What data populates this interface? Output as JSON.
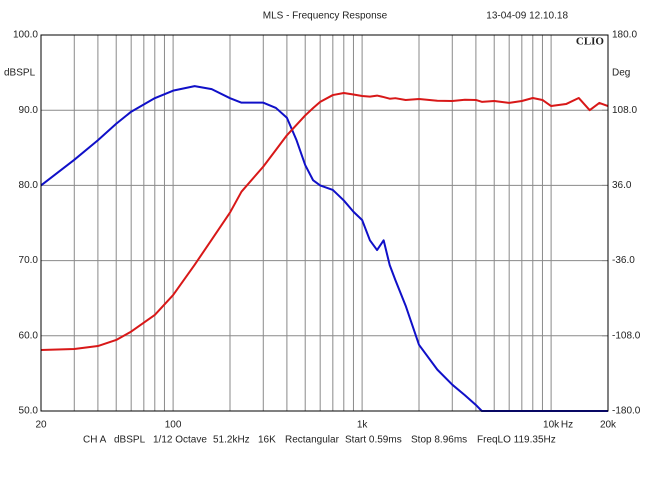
{
  "chart_data": {
    "type": "line",
    "title": "MLS - Frequency Response",
    "timestamp": "13-04-09 12.10.18",
    "brand": "CLIO",
    "ylabel": "dBSPL",
    "y2label": "Deg",
    "x_unit": "Hz",
    "footer": [
      "CH A",
      "dBSPL",
      "1/12 Octave",
      "51.2kHz",
      "16K",
      "Rectangular",
      "Start 0.59ms",
      "Stop 8.96ms",
      "FreqLO 119.35Hz"
    ],
    "xscale": "log",
    "grid": true,
    "xlim": [
      20,
      20000
    ],
    "xticks": [
      20,
      100,
      {
        "value": 1000,
        "label": "1k"
      },
      {
        "value": 10000,
        "label": "10k"
      },
      {
        "value": 20000,
        "label": "20k"
      }
    ],
    "xminor": [
      30,
      40,
      50,
      60,
      70,
      80,
      90,
      200,
      300,
      400,
      500,
      600,
      700,
      800,
      900,
      2000,
      3000,
      4000,
      5000,
      6000,
      7000,
      8000,
      9000
    ],
    "ylim": [
      50,
      100
    ],
    "yticks": [
      {
        "value": 50,
        "label": "50.0"
      },
      {
        "value": 60,
        "label": "60.0"
      },
      {
        "value": 70,
        "label": "70.0"
      },
      {
        "value": 80,
        "label": "80.0"
      },
      {
        "value": 90,
        "label": "90.0"
      },
      {
        "value": 100,
        "label": "100.0"
      }
    ],
    "y2lim": [
      -180,
      180
    ],
    "y2ticks": [
      {
        "value": -180,
        "label": "-180.0"
      },
      {
        "value": -108,
        "label": "-108.0"
      },
      {
        "value": -36,
        "label": "-36.0"
      },
      {
        "value": 36,
        "label": "36.0"
      },
      {
        "value": 108,
        "label": "108.0"
      },
      {
        "value": 180,
        "label": "180.0"
      }
    ],
    "x": [
      20,
      30,
      40,
      50,
      60,
      80,
      100,
      130,
      160,
      200,
      230,
      300,
      350,
      400,
      450,
      500,
      550,
      600,
      700,
      800,
      900,
      1000,
      1100,
      1200,
      1300,
      1400,
      1500,
      1700,
      2000,
      2500,
      3000,
      3500,
      4000,
      4300,
      5000,
      6000,
      7000,
      8000,
      9000,
      10000,
      12000,
      14000,
      16000,
      18000,
      20000
    ],
    "series": [
      {
        "color": "#1010c8",
        "values": [
          80,
          83.4,
          86,
          88.2,
          89.8,
          91.6,
          92.6,
          93.2,
          92.8,
          91.6,
          91,
          91,
          90.3,
          89,
          86,
          82.7,
          80.7,
          80,
          79.4,
          78,
          76.5,
          75.4,
          72.7,
          71.4,
          72.7,
          69.4,
          67.4,
          64,
          58.8,
          55.5,
          53.5,
          52.1,
          50.8,
          50,
          50,
          50,
          50,
          50,
          50,
          50,
          50,
          50,
          50,
          50,
          50
        ]
      },
      {
        "color": "#d81818",
        "axis": "y2",
        "values": [
          -121.6,
          -120.6,
          -117.8,
          -112,
          -104,
          -88,
          -69,
          -40,
          -16,
          10,
          30,
          54,
          70,
          84,
          94,
          103,
          110,
          116,
          122.5,
          124.5,
          123,
          121.6,
          121,
          122,
          120.6,
          119,
          119.5,
          117.8,
          118.7,
          117,
          116.8,
          118,
          117.8,
          116,
          116.8,
          115,
          116.8,
          119.7,
          117.8,
          112,
          113.9,
          119.7,
          108,
          115,
          112
        ]
      }
    ]
  }
}
